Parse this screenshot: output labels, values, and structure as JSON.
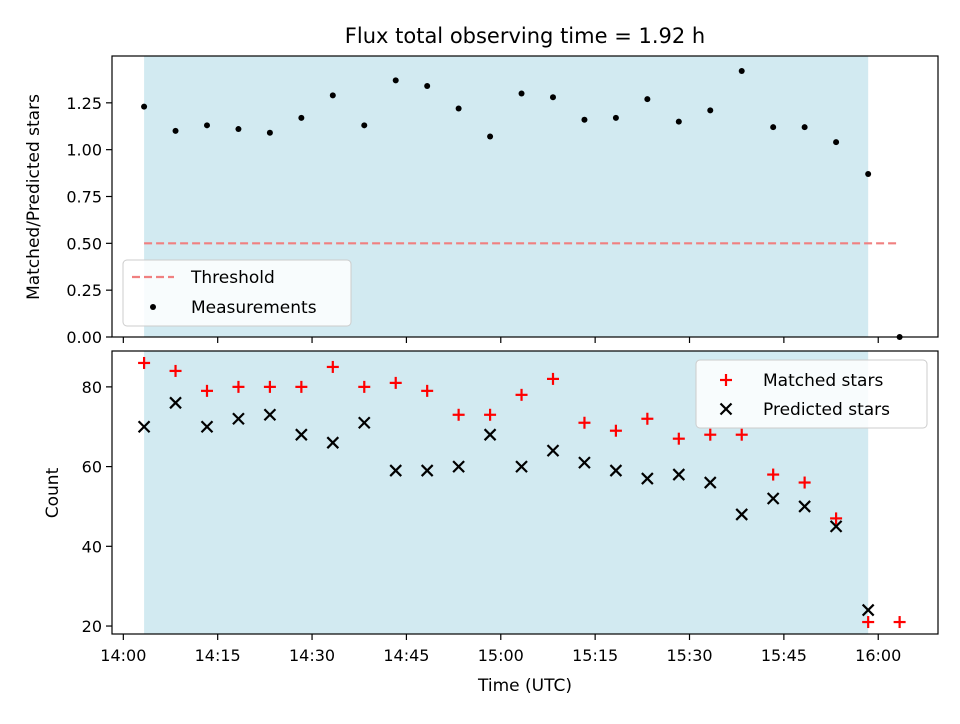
{
  "chart_data": {
    "type": "scatter",
    "title": "Flux total observing time = 1.92 h",
    "xlabel": "Time (UTC)",
    "x_ticks": [
      "14:00",
      "14:15",
      "14:30",
      "14:45",
      "15:00",
      "15:15",
      "15:30",
      "15:45",
      "16:00"
    ],
    "x_tick_minutes": [
      0,
      15,
      30,
      45,
      60,
      75,
      90,
      105,
      120
    ],
    "x_range_minutes": [
      -1.8,
      129.5
    ],
    "shaded_span_minutes": [
      3.3,
      118.4
    ],
    "times_minutes": [
      3.3,
      8.3,
      13.3,
      18.3,
      23.3,
      28.3,
      33.3,
      38.3,
      43.3,
      48.3,
      53.3,
      58.3,
      63.3,
      68.3,
      73.3,
      78.3,
      83.3,
      88.3,
      93.3,
      98.3,
      103.3,
      108.3,
      113.3,
      118.4,
      123.4
    ],
    "top_panel": {
      "ylabel": "Matched/Predicted stars",
      "ylim": [
        0.0,
        1.5
      ],
      "y_ticks": [
        "0.00",
        "0.25",
        "0.50",
        "0.75",
        "1.00",
        "1.25"
      ],
      "y_tick_values": [
        0.0,
        0.25,
        0.5,
        0.75,
        1.0,
        1.25
      ],
      "threshold": {
        "value": 0.5,
        "x_range_minutes": [
          3.3,
          123.4
        ],
        "color": "#f08080"
      },
      "ratio_values": [
        1.23,
        1.1,
        1.13,
        1.11,
        1.09,
        1.17,
        1.29,
        1.13,
        1.37,
        1.34,
        1.22,
        1.07,
        1.3,
        1.28,
        1.16,
        1.17,
        1.27,
        1.15,
        1.21,
        1.42,
        1.12,
        1.12,
        1.04,
        0.87,
        0.0
      ],
      "legend": {
        "placement": "lower-left",
        "entries": [
          "Threshold",
          "Measurements"
        ]
      }
    },
    "bottom_panel": {
      "ylabel": "Count",
      "ylim": [
        18,
        89
      ],
      "y_ticks": [
        "20",
        "40",
        "60",
        "80"
      ],
      "y_tick_values": [
        20,
        40,
        60,
        80
      ],
      "series": [
        {
          "name": "Matched stars",
          "marker": "plus",
          "color": "#ff0000",
          "values": [
            86,
            84,
            79,
            80,
            80,
            80,
            85,
            80,
            81,
            79,
            73,
            73,
            78,
            82,
            71,
            69,
            72,
            67,
            68,
            68,
            58,
            56,
            47,
            21,
            21
          ]
        },
        {
          "name": "Predicted stars",
          "marker": "x",
          "color": "#000000",
          "values": [
            70,
            76,
            70,
            72,
            73,
            68,
            66,
            71,
            59,
            59,
            60,
            68,
            60,
            64,
            61,
            59,
            57,
            58,
            56,
            48,
            52,
            50,
            45,
            24,
            null
          ]
        }
      ],
      "legend": {
        "placement": "upper-right"
      }
    },
    "colors": {
      "shade": "#add8e6",
      "axis": "#000000"
    }
  }
}
